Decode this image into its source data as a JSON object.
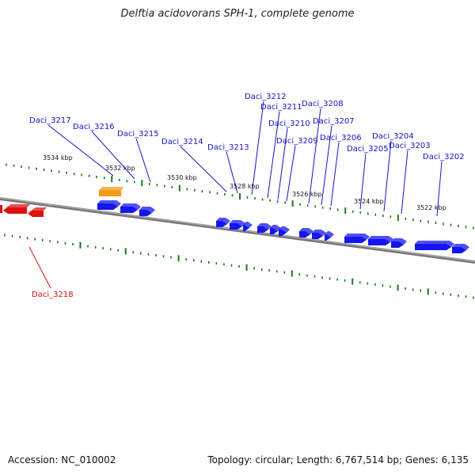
{
  "title": "Delftia acidovorans SPH-1, complete genome",
  "footer": {
    "accession": "Accession: NC_010002",
    "summary": "Topology: circular; Length: 6,767,514 bp; Genes: 6,135"
  },
  "colors": {
    "forward_gene": "#1515ee",
    "reverse_gene": "#e01010",
    "highlight_gene": "#f59b1a",
    "tick": "#1a7a1a",
    "backbone": "#8a8a8a",
    "forward_label": "#1414c8",
    "reverse_label": "#d01010"
  },
  "scale_labels": [
    "3534 kbp",
    "3532 kbp",
    "3530 kbp",
    "3528 kbp",
    "3526 kbp",
    "3524 kbp",
    "3522 kbp"
  ],
  "gene_labels": [
    "Daci_3217",
    "Daci_3216",
    "Daci_3215",
    "Daci_3214",
    "Daci_3213",
    "Daci_3212",
    "Daci_3211",
    "Daci_3210",
    "Daci_3209",
    "Daci_3208",
    "Daci_3207",
    "Daci_3206",
    "Daci_3205",
    "Daci_3204",
    "Daci_3203",
    "Daci_3202",
    "Daci_3218"
  ]
}
